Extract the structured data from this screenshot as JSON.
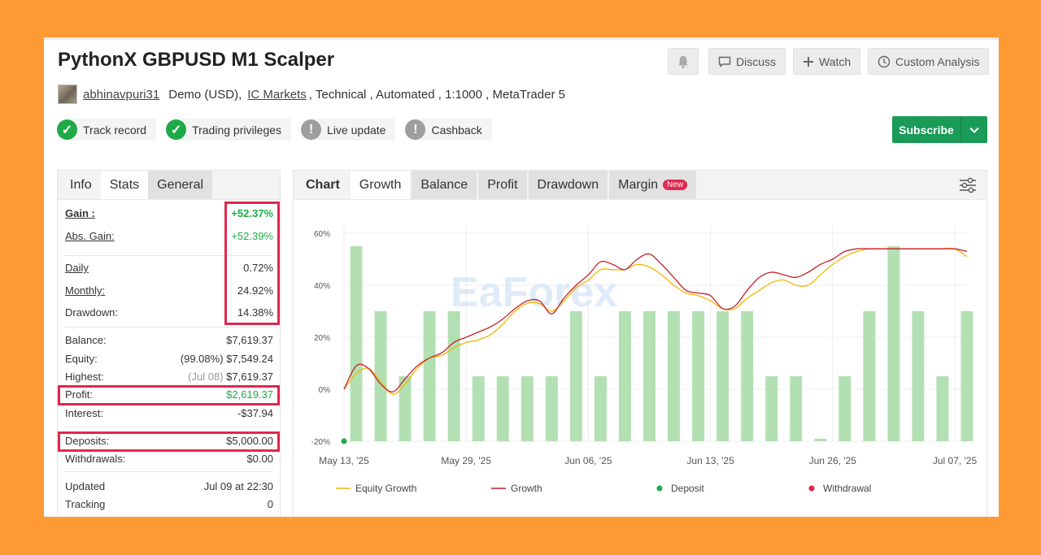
{
  "header": {
    "title": "PythonX GBPUSD M1 Scalper",
    "buttons": {
      "discuss": "Discuss",
      "watch": "Watch",
      "custom_analysis": "Custom Analysis"
    }
  },
  "author": {
    "username": "abhinavpuri31",
    "account": "Demo (USD),",
    "broker": "IC Markets",
    "details": ", Technical , Automated , 1:1000 , MetaTrader 5"
  },
  "badges": [
    {
      "label": "Track record",
      "status": "ok"
    },
    {
      "label": "Trading privileges",
      "status": "ok"
    },
    {
      "label": "Live update",
      "status": "na"
    },
    {
      "label": "Cashback",
      "status": "na"
    }
  ],
  "subscribe_label": "Subscribe",
  "left_tabs": [
    "Info",
    "Stats",
    "General"
  ],
  "stats": {
    "gain": {
      "label": "Gain :",
      "value": "+52.37%"
    },
    "abs_gain": {
      "label": "Abs. Gain:",
      "value": "+52.39%"
    },
    "daily": {
      "label": "Daily",
      "value": "0.72%"
    },
    "monthly": {
      "label": "Monthly:",
      "value": "24.92%"
    },
    "drawdown": {
      "label": "Drawdown:",
      "value": "14.38%"
    },
    "balance": {
      "label": "Balance:",
      "value": "$7,619.37"
    },
    "equity": {
      "label": "Equity:",
      "note": "(99.08%)",
      "value": "$7,549.24"
    },
    "highest": {
      "label": "Highest:",
      "note": "(Jul 08)",
      "value": "$7,619.37"
    },
    "profit": {
      "label": "Profit:",
      "value": "$2,619.37"
    },
    "interest": {
      "label": "Interest:",
      "value": "-$37.94"
    },
    "deposits": {
      "label": "Deposits:",
      "value": "$5,000.00"
    },
    "withdrawals": {
      "label": "Withdrawals:",
      "value": "$0.00"
    },
    "updated": {
      "label": "Updated",
      "value": "Jul 09 at 22:30"
    },
    "tracking": {
      "label": "Tracking",
      "value": "0"
    }
  },
  "chart_tabs": {
    "lead": "Chart",
    "items": [
      "Growth",
      "Balance",
      "Profit",
      "Drawdown",
      "Margin"
    ],
    "new_badge": "New"
  },
  "watermark": "EaForex",
  "colors": {
    "equity_growth": "#f2b705",
    "growth": "#c4202c",
    "deposit": "#1faa4a",
    "withdrawal": "#e0284f",
    "bars": "#b3e0b3",
    "highlight": "#e0284f",
    "subscribe": "#1a9b57"
  },
  "chart_data": {
    "type": "line",
    "ylim": [
      -20,
      60
    ],
    "yticks": [
      "60%",
      "40%",
      "20%",
      "0%",
      "-20%"
    ],
    "ytick_values": [
      60,
      40,
      20,
      0,
      -20
    ],
    "xtick_labels": [
      "May 13, '25",
      "May 29, '25",
      "Jun 06, '25",
      "Jun 13, '25",
      "Jun 26, '25",
      "Jul 07, '25"
    ],
    "xtick_index": [
      0,
      10,
      20,
      30,
      40,
      50
    ],
    "x_count": 52,
    "bar_heights": [
      55,
      30,
      5,
      30,
      30,
      5,
      5,
      5,
      5,
      30,
      5,
      30,
      30,
      30,
      30,
      30,
      30,
      5,
      5,
      -19,
      5,
      30,
      55,
      30,
      5,
      30
    ],
    "bar_index": [
      1,
      3,
      5,
      7,
      9,
      11,
      13,
      15,
      17,
      19,
      21,
      23,
      25,
      27,
      29,
      31,
      33,
      35,
      37,
      39,
      41,
      43,
      45,
      47,
      49,
      51
    ],
    "series": [
      {
        "name": "Equity Growth",
        "x": [
          0,
          1,
          2,
          3,
          4,
          5,
          6,
          7,
          8,
          9,
          10,
          11,
          12,
          13,
          14,
          15,
          16,
          17,
          18,
          19,
          20,
          21,
          22,
          23,
          24,
          25,
          26,
          27,
          28,
          29,
          30,
          31,
          32,
          33,
          34,
          35,
          36,
          37,
          38,
          39,
          40,
          41,
          42,
          43,
          44,
          45,
          46,
          47,
          48,
          49,
          50,
          51
        ],
        "values": [
          0,
          6,
          8,
          3,
          -2,
          2,
          8,
          12,
          13,
          16,
          18,
          19,
          21,
          25,
          30,
          33,
          33,
          30,
          34,
          39,
          42,
          46,
          46,
          46,
          48,
          47,
          44,
          40,
          37,
          36,
          34,
          31,
          31,
          35,
          38,
          41,
          42,
          40,
          40,
          44,
          48,
          51,
          53,
          54,
          54,
          54,
          54,
          54,
          54,
          54,
          54,
          51
        ]
      },
      {
        "name": "Growth",
        "x": [
          0,
          1,
          2,
          3,
          4,
          5,
          6,
          7,
          8,
          9,
          10,
          11,
          12,
          13,
          14,
          15,
          16,
          17,
          18,
          19,
          20,
          21,
          22,
          23,
          24,
          25,
          26,
          27,
          28,
          29,
          30,
          31,
          32,
          33,
          34,
          35,
          36,
          37,
          38,
          39,
          40,
          41,
          42,
          43,
          44,
          45,
          46,
          47,
          48,
          49,
          50,
          51
        ],
        "values": [
          0,
          9,
          8,
          2,
          -1,
          4,
          9,
          12,
          14,
          18,
          20,
          22,
          24,
          27,
          31,
          34,
          34,
          29,
          35,
          40,
          44,
          49,
          48,
          46,
          50,
          52,
          48,
          43,
          38,
          37,
          36,
          31,
          32,
          38,
          43,
          45,
          44,
          43,
          45,
          48,
          50,
          53,
          54,
          54,
          54,
          54,
          54,
          54,
          54,
          54,
          54,
          53
        ]
      }
    ],
    "deposit_points": [
      {
        "x": 0,
        "y": -20
      }
    ],
    "legend": [
      "Equity Growth",
      "Growth",
      "Deposit",
      "Withdrawal"
    ],
    "legend_position": "bottom"
  }
}
